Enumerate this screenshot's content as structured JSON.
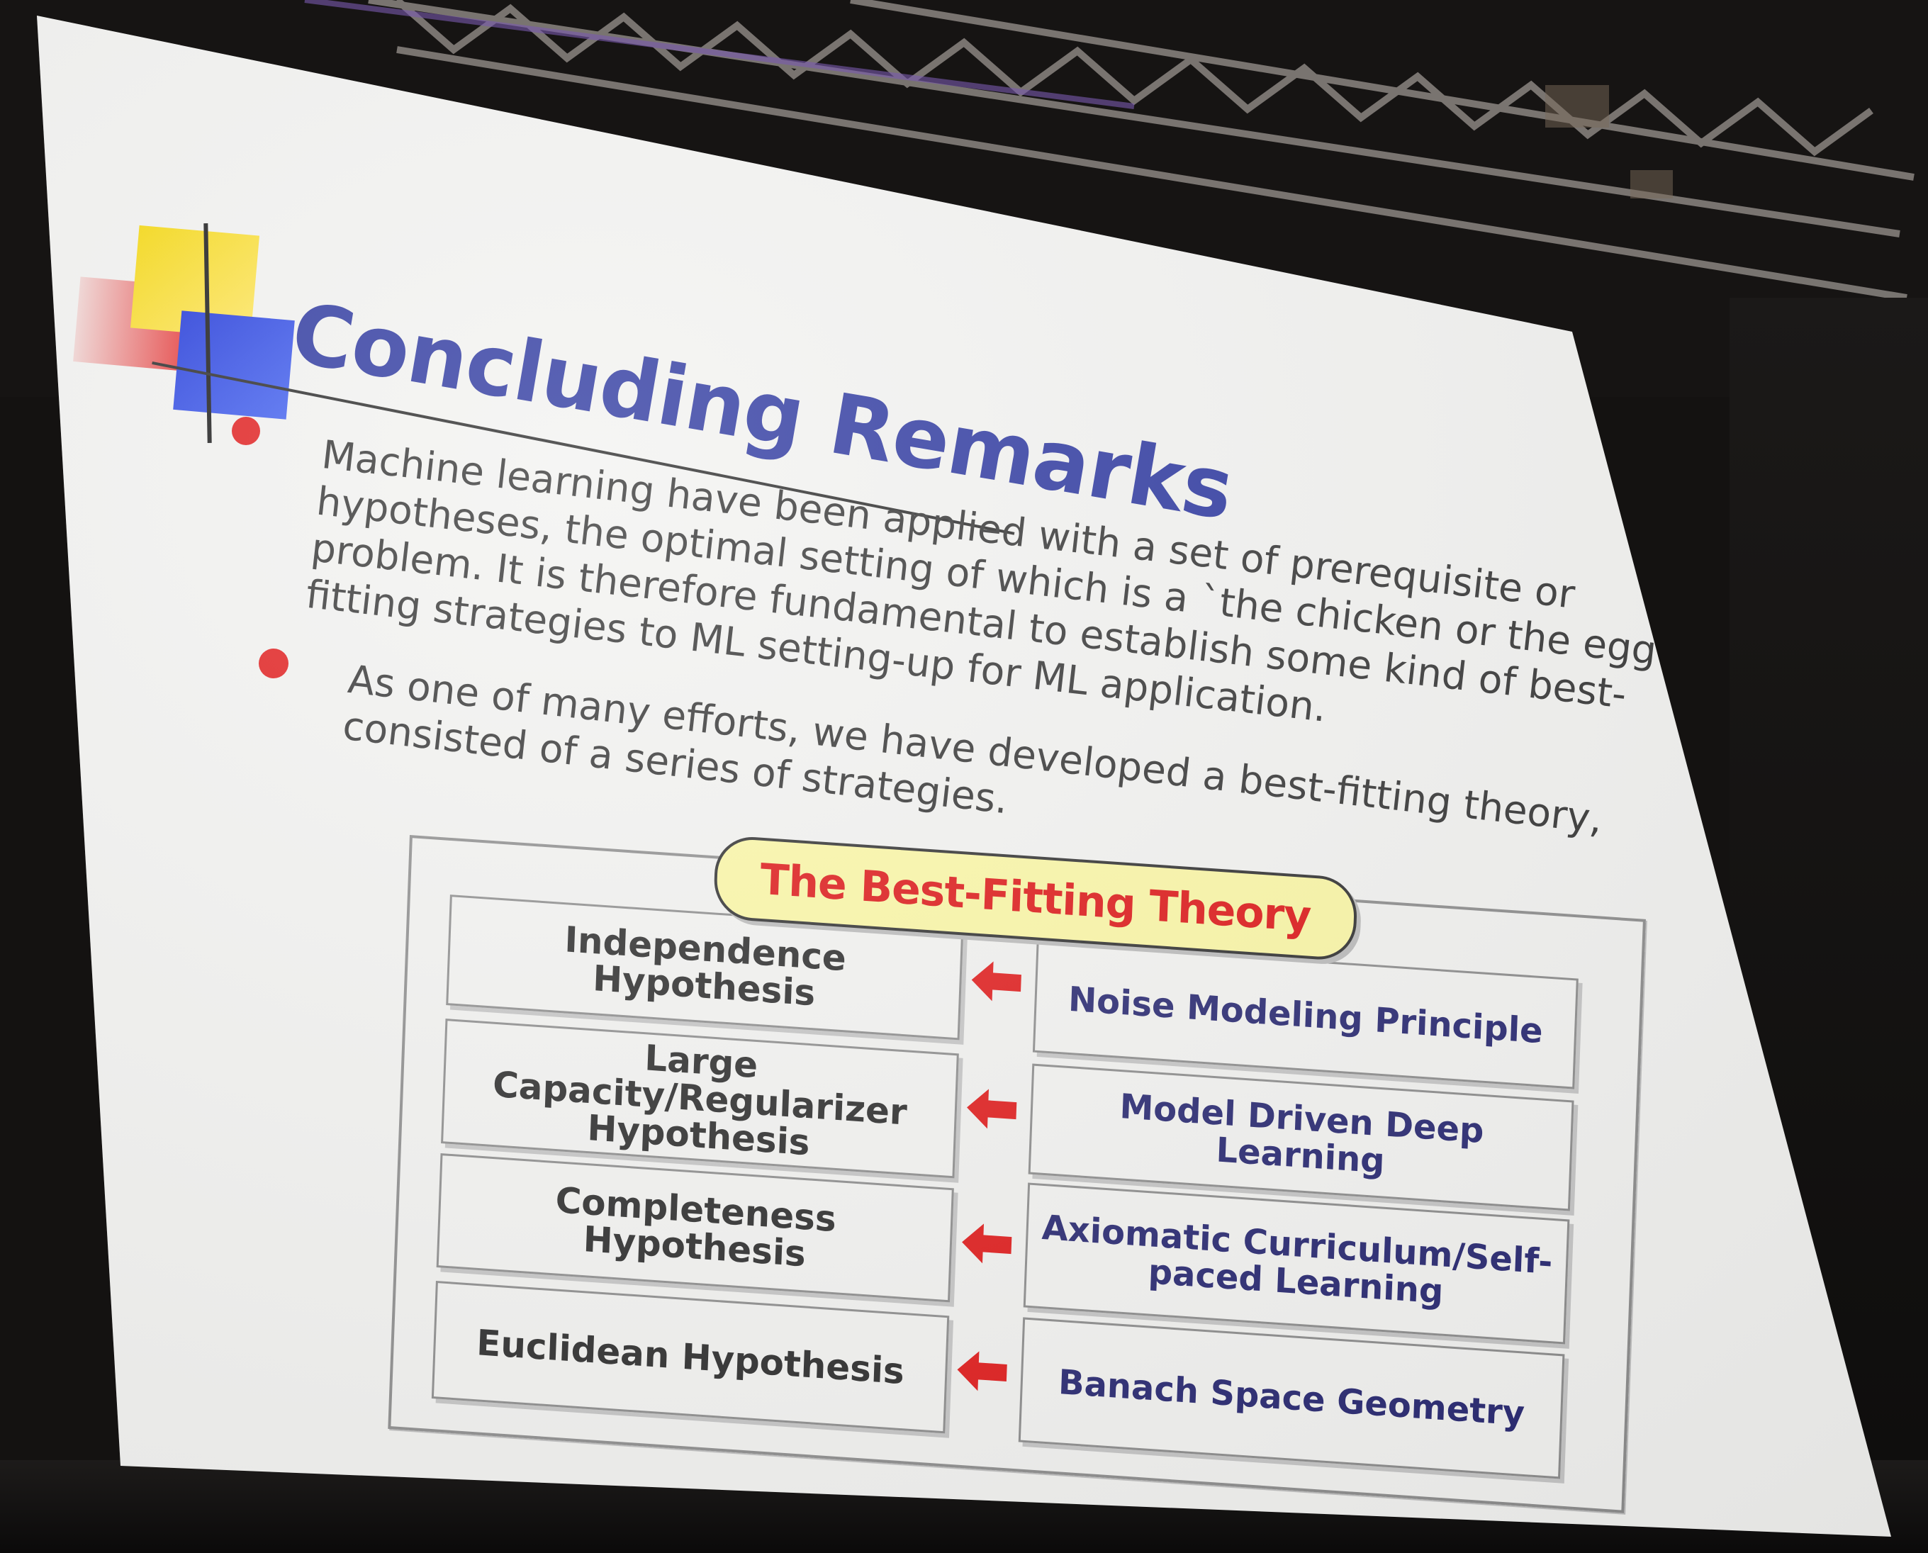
{
  "slide": {
    "title": "Concluding Remarks",
    "paragraph1_lines": [
      "Machine learning have been applied with a set of prerequisite or",
      "hypotheses, the optimal setting of which is a `the chicken or the egg'",
      "problem. It is therefore fundamental to establish some kind of best-",
      "fitting strategies to ML setting-up for ML application."
    ],
    "paragraph2_lines": [
      "As one of many efforts, we have developed a best-fitting theory,",
      "consisted of a series of strategies."
    ],
    "diagram": {
      "header": "The Best-Fitting Theory",
      "rows": [
        {
          "hypothesis": "Independence Hypothesis",
          "strategy": "Noise Modeling Principle"
        },
        {
          "hypothesis": "Large Capacity/Regularizer\nHypothesis",
          "strategy": "Model Driven Deep Learning"
        },
        {
          "hypothesis": "Completeness Hypothesis",
          "strategy": "Axiomatic Curriculum/Self-\npaced Learning"
        },
        {
          "hypothesis": "Euclidean Hypothesis",
          "strategy": "Banach Space Geometry"
        }
      ]
    }
  },
  "colors": {
    "title": "#25309c",
    "body_text": "#2e2e2e",
    "bullet": "#e01515",
    "header_text": "#dd1010",
    "header_fill": "#fbf7a3",
    "strategy_text": "#23236e",
    "arrow": "#e01515",
    "deco_yellow": "#f5d600",
    "deco_red": "#e31a1a",
    "deco_blue": "#1830d8"
  }
}
